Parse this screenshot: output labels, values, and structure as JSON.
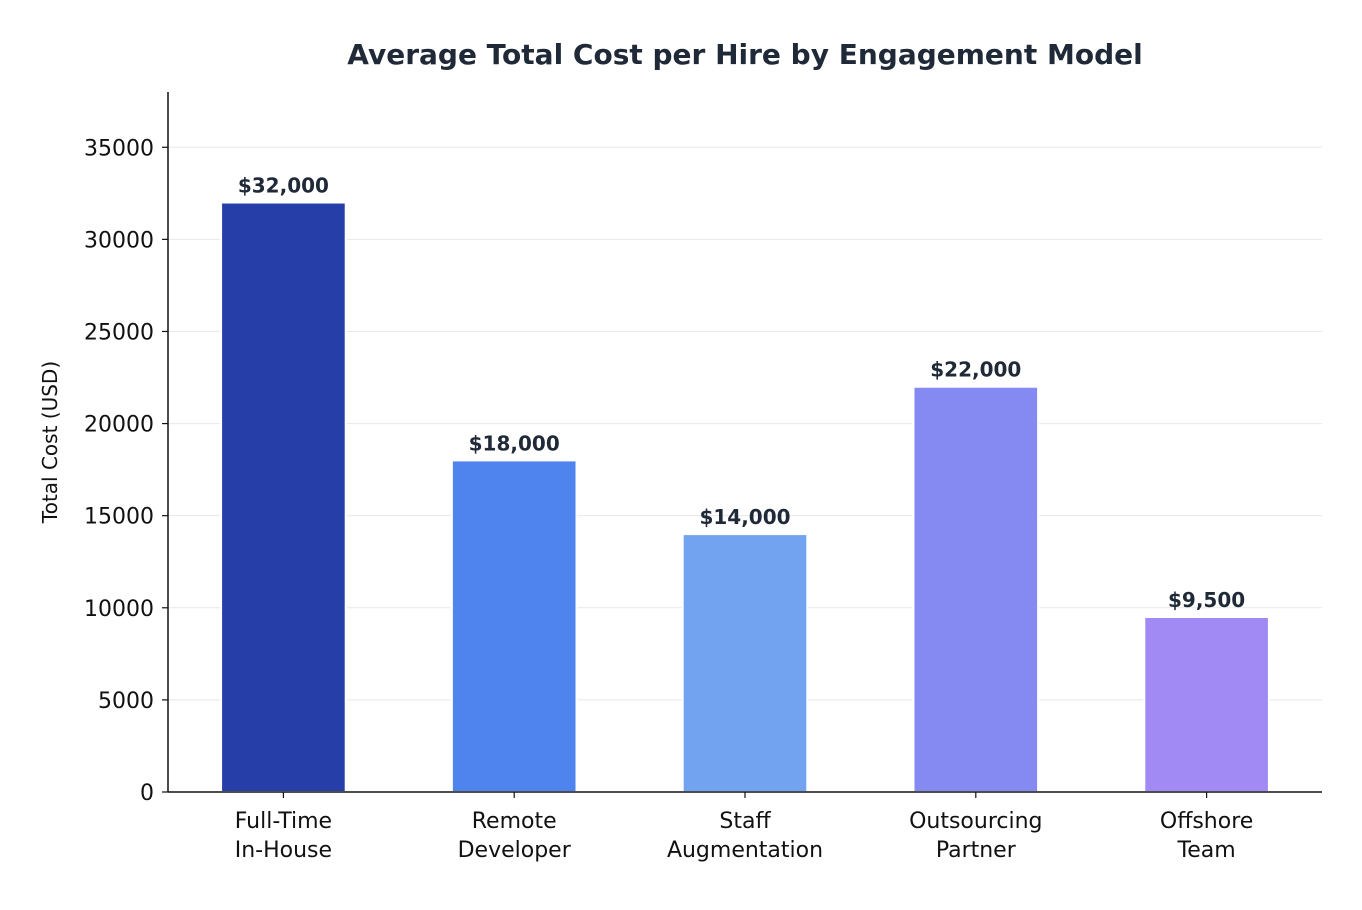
{
  "chart_data": {
    "type": "bar",
    "title": "Average Total Cost per Hire by Engagement Model",
    "xlabel": "",
    "ylabel": "Total Cost (USD)",
    "categories": [
      [
        "Full-Time",
        "In-House"
      ],
      [
        "Remote",
        "Developer"
      ],
      [
        "Staff",
        "Augmentation"
      ],
      [
        "Outsourcing",
        "Partner"
      ],
      [
        "Offshore",
        "Team"
      ]
    ],
    "values": [
      32000,
      18000,
      14000,
      22000,
      9500
    ],
    "data_labels": [
      "$32,000",
      "$18,000",
      "$14,000",
      "$22,000",
      "$9,500"
    ],
    "colors": [
      "#263FA8",
      "#4F83EE",
      "#71A3F1",
      "#848AF1",
      "#A18AF3"
    ],
    "ylim": [
      0,
      38000
    ],
    "yticks": [
      0,
      5000,
      10000,
      15000,
      20000,
      25000,
      30000,
      35000
    ],
    "grid": "horizontal",
    "legend": "none"
  }
}
